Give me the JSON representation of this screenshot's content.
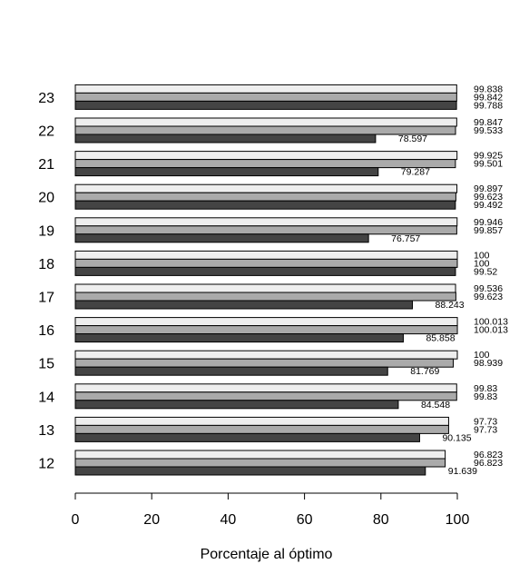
{
  "chart_data": {
    "type": "bar",
    "orientation": "horizontal",
    "title": "",
    "xlabel": "Porcentaje al óptimo",
    "ylabel": "",
    "xlim": [
      0,
      100
    ],
    "x_ticks": [
      "0",
      "20",
      "40",
      "60",
      "80",
      "100"
    ],
    "grid": false,
    "legend": "none",
    "categories": [
      "12",
      "13",
      "14",
      "15",
      "16",
      "17",
      "18",
      "19",
      "20",
      "21",
      "22",
      "23"
    ],
    "series": [
      {
        "color": "#eeeeee",
        "values": [
          96.823,
          97.73,
          99.83,
          100,
          100.013,
          99.536,
          100,
          99.946,
          99.897,
          99.925,
          99.847,
          99.838
        ],
        "labels": [
          "96.823",
          "97.73",
          "99.83",
          "100",
          "100.013",
          "99.536",
          "100",
          "99.946",
          "99.897",
          "99.925",
          "99.847",
          "99.838"
        ]
      },
      {
        "color": "#aaaaaa",
        "values": [
          96.823,
          97.73,
          99.83,
          98.939,
          100.013,
          99.623,
          100,
          99.857,
          99.623,
          99.501,
          99.533,
          99.842
        ],
        "labels": [
          "96.823",
          "97.73",
          "99.83",
          "98.939",
          "100.013",
          "99.623",
          "100",
          "99.857",
          "99.623",
          "99.501",
          "99.533",
          "99.842"
        ]
      },
      {
        "color": "#444444",
        "values": [
          91.639,
          90.135,
          84.548,
          81.769,
          85.858,
          88.243,
          99.52,
          76.757,
          99.492,
          79.287,
          78.597,
          99.788
        ],
        "labels": [
          "91.639",
          "90.135",
          "84.548",
          "81.769",
          "85.858",
          "88.243",
          "99.52",
          "76.757",
          "99.492",
          "79.287",
          "78.597",
          "99.788"
        ]
      }
    ]
  }
}
